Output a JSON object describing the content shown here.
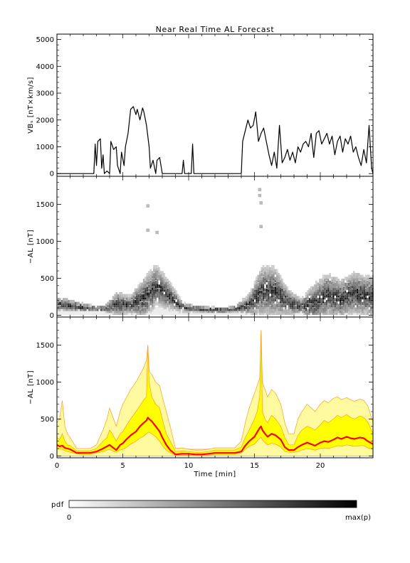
{
  "title": "Near Real Time AL Forecast",
  "colors": {
    "line": "#000000",
    "median": "#ff0000",
    "band_outer": "#fffaa0",
    "band_inner": "#ffff00",
    "band_edge": "#ff9e1f",
    "floor": "#ffd9a6"
  },
  "colorbar": {
    "label": "pdf",
    "min_label": "0",
    "max_label": "max(p)"
  },
  "chart_data": [
    {
      "type": "line",
      "name": "vbs-panel",
      "ylabel": "VBₛ [nT×km/s]",
      "ylim": [
        -100,
        5200
      ],
      "yticks": [
        0,
        1000,
        2000,
        3000,
        4000,
        5000
      ],
      "xlim": [
        0,
        24
      ],
      "series": [
        {
          "x": [
            0,
            2.8,
            2.9,
            3.0,
            3.1,
            3.3,
            3.4,
            3.5,
            3.6,
            3.8,
            4.0,
            4.1,
            4.3,
            4.5,
            4.6,
            4.8,
            4.9,
            5.1,
            5.2,
            5.4,
            5.6,
            5.8,
            6.0,
            6.1,
            6.3,
            6.5,
            6.6,
            6.8,
            7.0,
            7.1,
            7.3,
            7.5,
            7.6,
            7.8,
            8.0,
            8.2,
            8.3,
            9.5,
            9.6,
            9.7,
            10.2,
            10.3,
            10.4,
            14.0,
            14.1,
            14.3,
            14.5,
            14.7,
            14.9,
            15.1,
            15.3,
            15.5,
            15.7,
            15.9,
            16.1,
            16.3,
            16.5,
            16.7,
            16.9,
            17.1,
            17.3,
            17.5,
            17.7,
            17.9,
            18.1,
            18.3,
            18.5,
            18.7,
            18.9,
            19.1,
            19.3,
            19.5,
            19.7,
            19.9,
            20.1,
            20.3,
            20.5,
            20.7,
            20.9,
            21.1,
            21.3,
            21.5,
            21.7,
            21.9,
            22.1,
            22.3,
            22.5,
            22.7,
            22.9,
            23.1,
            23.3,
            23.5,
            23.7,
            23.9,
            24.0
          ],
          "y": [
            0,
            0,
            1100,
            300,
            1200,
            1300,
            200,
            700,
            0,
            100,
            0,
            1200,
            900,
            1000,
            300,
            0,
            800,
            300,
            1000,
            1500,
            2400,
            2500,
            2200,
            2400,
            2000,
            2450,
            2300,
            1800,
            1000,
            200,
            500,
            0,
            500,
            600,
            0,
            0,
            0,
            0,
            500,
            0,
            0,
            1100,
            0,
            0,
            1200,
            1600,
            2000,
            1700,
            1800,
            2300,
            1200,
            1500,
            1700,
            1200,
            700,
            300,
            800,
            200,
            1800,
            400,
            600,
            900,
            500,
            800,
            400,
            1000,
            800,
            1100,
            1200,
            1000,
            1500,
            600,
            1500,
            1600,
            1100,
            1300,
            1500,
            1100,
            1400,
            700,
            1200,
            1400,
            800,
            1300,
            1100,
            1400,
            800,
            1000,
            600,
            300,
            900,
            400,
            1800,
            200,
            0
          ]
        }
      ]
    },
    {
      "type": "heatmap",
      "name": "pdf-panel",
      "ylabel": "−AL [nT]",
      "ylim": [
        -25,
        1880
      ],
      "yticks": [
        0,
        500,
        1000,
        1500
      ],
      "xlim": [
        0,
        24
      ],
      "columns": {
        "x": [
          0,
          1,
          2,
          3,
          4,
          5,
          6,
          7,
          8,
          9,
          10,
          11,
          12,
          13,
          14,
          15,
          16,
          17,
          18,
          19,
          20,
          21,
          22,
          23
        ],
        "centers": [
          120,
          90,
          70,
          60,
          130,
          120,
          200,
          380,
          240,
          80,
          60,
          50,
          40,
          60,
          120,
          300,
          300,
          150,
          100,
          140,
          250,
          200,
          280,
          240
        ],
        "spread": [
          100,
          70,
          40,
          30,
          180,
          130,
          320,
          320,
          220,
          70,
          40,
          40,
          30,
          40,
          150,
          380,
          380,
          200,
          110,
          300,
          330,
          300,
          320,
          320
        ]
      },
      "outliers": [
        {
          "x": 6.9,
          "y": 1480
        },
        {
          "x": 6.9,
          "y": 1150
        },
        {
          "x": 7.6,
          "y": 1120
        },
        {
          "x": 15.4,
          "y": 1700
        },
        {
          "x": 15.4,
          "y": 1620
        },
        {
          "x": 15.5,
          "y": 1520
        },
        {
          "x": 15.5,
          "y": 1200
        }
      ]
    },
    {
      "type": "area",
      "name": "forecast-panel",
      "xlabel": "Time [min]",
      "ylabel": "−AL [nT]",
      "ylim": [
        -25,
        1880
      ],
      "yticks": [
        0,
        500,
        1000,
        1500
      ],
      "xticks": [
        0,
        5,
        10,
        15,
        20
      ],
      "xlim": [
        0,
        24
      ],
      "x": [
        0,
        0.2,
        0.4,
        0.6,
        0.8,
        1.0,
        1.5,
        2.0,
        2.5,
        3.0,
        3.5,
        3.8,
        4.0,
        4.2,
        4.5,
        4.8,
        5.0,
        5.3,
        5.6,
        6.0,
        6.3,
        6.6,
        6.8,
        6.9,
        7.0,
        7.2,
        7.5,
        7.8,
        8.0,
        8.3,
        8.6,
        9.0,
        9.5,
        10.0,
        10.5,
        11.0,
        11.5,
        12.0,
        12.5,
        13.0,
        13.5,
        14.0,
        14.3,
        14.6,
        15.0,
        15.2,
        15.4,
        15.5,
        15.6,
        15.8,
        16.0,
        16.3,
        16.6,
        17.0,
        17.3,
        17.6,
        18.0,
        18.3,
        18.6,
        19.0,
        19.3,
        19.6,
        20.0,
        20.3,
        20.6,
        21.0,
        21.3,
        21.6,
        22.0,
        22.3,
        22.6,
        23.0,
        23.3,
        23.6,
        24.0
      ],
      "median": [
        150,
        130,
        140,
        110,
        100,
        90,
        40,
        40,
        40,
        60,
        100,
        130,
        150,
        120,
        80,
        150,
        170,
        230,
        280,
        330,
        400,
        450,
        480,
        520,
        500,
        470,
        400,
        330,
        250,
        150,
        80,
        20,
        30,
        30,
        20,
        20,
        30,
        40,
        40,
        40,
        40,
        60,
        140,
        200,
        260,
        320,
        380,
        400,
        350,
        300,
        260,
        300,
        280,
        220,
        120,
        80,
        80,
        120,
        150,
        180,
        160,
        140,
        180,
        200,
        190,
        220,
        250,
        230,
        260,
        240,
        230,
        250,
        240,
        200,
        160
      ],
      "inner_low": [
        100,
        90,
        90,
        70,
        60,
        50,
        30,
        20,
        20,
        40,
        60,
        80,
        90,
        70,
        50,
        80,
        90,
        120,
        160,
        200,
        240,
        270,
        300,
        320,
        320,
        300,
        260,
        200,
        140,
        80,
        40,
        10,
        10,
        10,
        10,
        10,
        10,
        20,
        20,
        20,
        20,
        40,
        90,
        130,
        160,
        200,
        240,
        250,
        220,
        180,
        150,
        170,
        160,
        120,
        60,
        50,
        50,
        60,
        80,
        100,
        90,
        80,
        100,
        110,
        100,
        120,
        140,
        130,
        150,
        140,
        130,
        140,
        140,
        110,
        90
      ],
      "inner_high": [
        250,
        220,
        300,
        200,
        150,
        140,
        70,
        70,
        70,
        100,
        200,
        250,
        350,
        300,
        200,
        300,
        330,
        420,
        500,
        600,
        680,
        760,
        800,
        1500,
        1000,
        800,
        700,
        650,
        500,
        300,
        200,
        60,
        70,
        60,
        50,
        50,
        60,
        80,
        80,
        80,
        80,
        120,
        250,
        350,
        500,
        600,
        800,
        1700,
        600,
        500,
        450,
        550,
        500,
        400,
        250,
        150,
        150,
        280,
        350,
        400,
        380,
        350,
        420,
        480,
        450,
        500,
        550,
        520,
        560,
        520,
        500,
        540,
        520,
        460,
        300
      ],
      "outer_high": [
        450,
        500,
        750,
        400,
        300,
        250,
        100,
        100,
        100,
        150,
        350,
        500,
        650,
        550,
        400,
        600,
        700,
        800,
        900,
        1000,
        1100,
        1200,
        1300,
        1500,
        1150,
        1100,
        1000,
        950,
        800,
        600,
        400,
        100,
        110,
        90,
        80,
        80,
        90,
        110,
        110,
        110,
        110,
        200,
        450,
        650,
        850,
        950,
        1050,
        1700,
        1000,
        900,
        800,
        900,
        850,
        700,
        450,
        300,
        300,
        500,
        600,
        700,
        650,
        600,
        700,
        750,
        720,
        780,
        800,
        760,
        790,
        760,
        740,
        770,
        750,
        680,
        450
      ]
    }
  ]
}
